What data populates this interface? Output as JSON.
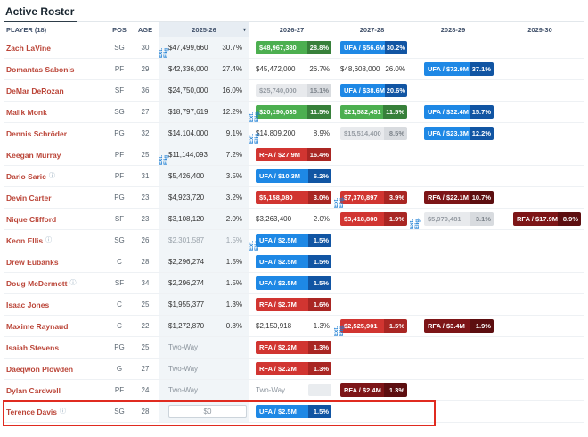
{
  "title": "Active Roster",
  "labels": {
    "ext_elig": "Ext. Elig.",
    "two_way": "Two-Way"
  },
  "columns": [
    {
      "key": "player",
      "label": "PLAYER (18)",
      "sortable": true
    },
    {
      "key": "pos",
      "label": "POS",
      "sortable": true
    },
    {
      "key": "age",
      "label": "AGE",
      "sortable": true
    },
    {
      "key": "2025-26",
      "label": "2025-26",
      "sortable": true,
      "sorted": true
    },
    {
      "key": "2026-27",
      "label": "2026-27",
      "sortable": true
    },
    {
      "key": "2027-28",
      "label": "2027-28",
      "sortable": true
    },
    {
      "key": "2028-29",
      "label": "2028-29",
      "sortable": true
    },
    {
      "key": "2029-30",
      "label": "2029-30",
      "sortable": true
    }
  ],
  "colors": {
    "player_link": "#bb4538",
    "highlight_border": "#e02b20",
    "ext_elig_text": "#1d7fd4",
    "sorted_column_bg": "#e7edf3",
    "badges": {
      "green": {
        "bg": "#4caf50",
        "dark": "#37803a"
      },
      "blue": {
        "bg": "#1e88e5",
        "dark": "#1155a3"
      },
      "red": {
        "bg": "#d13531",
        "dark": "#a92623"
      },
      "darkred": {
        "bg": "#7d1517",
        "dark": "#5c0e10"
      },
      "grey": {
        "bg": "#e8eaed",
        "dark": "#d8dbdf",
        "text": "#969ca3",
        "text_dark": "#7c838a"
      }
    }
  },
  "rows": [
    {
      "player": "Zach LaVine",
      "pos": "SG",
      "age": 30,
      "y2025": {
        "type": "salary",
        "value": "$47,499,660",
        "pct": "30.7%",
        "ext": true
      },
      "y2026": {
        "type": "badge",
        "style": "green",
        "label": "$48,967,380",
        "pct": "28.8%"
      },
      "y2027": {
        "type": "badge",
        "style": "blue",
        "label": "UFA / $56.6M",
        "pct": "30.2%"
      },
      "y2028": null,
      "y2029": null
    },
    {
      "player": "Domantas Sabonis",
      "pos": "PF",
      "age": 29,
      "y2025": {
        "type": "salary",
        "value": "$42,336,000",
        "pct": "27.4%"
      },
      "y2026": {
        "type": "plain",
        "label": "$45,472,000",
        "pct": "26.7%"
      },
      "y2027": {
        "type": "plain",
        "label": "$48,608,000",
        "pct": "26.0%"
      },
      "y2028": {
        "type": "badge",
        "style": "blue",
        "label": "UFA / $72.9M",
        "pct": "37.1%"
      },
      "y2029": null
    },
    {
      "player": "DeMar DeRozan",
      "pos": "SF",
      "age": 36,
      "y2025": {
        "type": "salary",
        "value": "$24,750,000",
        "pct": "16.0%"
      },
      "y2026": {
        "type": "badge",
        "style": "grey",
        "label": "$25,740,000",
        "pct": "15.1%"
      },
      "y2027": {
        "type": "badge",
        "style": "blue",
        "label": "UFA / $38.6M",
        "pct": "20.6%"
      },
      "y2028": null,
      "y2029": null
    },
    {
      "player": "Malik Monk",
      "pos": "SG",
      "age": 27,
      "y2025": {
        "type": "salary",
        "value": "$18,797,619",
        "pct": "12.2%"
      },
      "y2026": {
        "type": "badge",
        "style": "green",
        "label": "$20,190,035",
        "pct": "11.5%",
        "ext": true
      },
      "y2027": {
        "type": "badge",
        "style": "green",
        "label": "$21,582,451",
        "pct": "11.5%"
      },
      "y2028": {
        "type": "badge",
        "style": "blue",
        "label": "UFA / $32.4M",
        "pct": "15.7%"
      },
      "y2029": null
    },
    {
      "player": "Dennis Schröder",
      "pos": "PG",
      "age": 32,
      "y2025": {
        "type": "salary",
        "value": "$14,104,000",
        "pct": "9.1%"
      },
      "y2026": {
        "type": "plain",
        "label": "$14,809,200",
        "pct": "8.9%",
        "ext": true
      },
      "y2027": {
        "type": "badge",
        "style": "grey",
        "label": "$15,514,400",
        "pct": "8.5%"
      },
      "y2028": {
        "type": "badge",
        "style": "blue",
        "label": "UFA / $23.3M",
        "pct": "12.2%"
      },
      "y2029": null
    },
    {
      "player": "Keegan Murray",
      "pos": "PF",
      "age": 25,
      "y2025": {
        "type": "salary",
        "value": "$11,144,093",
        "pct": "7.2%",
        "ext": true
      },
      "y2026": {
        "type": "badge",
        "style": "red",
        "label": "RFA / $27.9M",
        "pct": "16.4%"
      },
      "y2027": null,
      "y2028": null,
      "y2029": null
    },
    {
      "player": "Dario Saric",
      "pos": "PF",
      "age": 31,
      "icon": true,
      "y2025": {
        "type": "salary",
        "value": "$5,426,400",
        "pct": "3.5%"
      },
      "y2026": {
        "type": "badge",
        "style": "blue",
        "label": "UFA / $10.3M",
        "pct": "6.2%"
      },
      "y2027": null,
      "y2028": null,
      "y2029": null
    },
    {
      "player": "Devin Carter",
      "pos": "PG",
      "age": 23,
      "y2025": {
        "type": "salary",
        "value": "$4,923,720",
        "pct": "3.2%"
      },
      "y2026": {
        "type": "badge",
        "style": "red",
        "label": "$5,158,080",
        "pct": "3.0%"
      },
      "y2027": {
        "type": "badge",
        "style": "red",
        "label": "$7,370,897",
        "pct": "3.9%",
        "ext": true
      },
      "y2028": {
        "type": "badge",
        "style": "darkred",
        "label": "RFA / $22.1M",
        "pct": "10.7%"
      },
      "y2029": null
    },
    {
      "player": "Nique Clifford",
      "pos": "SF",
      "age": 23,
      "y2025": {
        "type": "salary",
        "value": "$3,108,120",
        "pct": "2.0%"
      },
      "y2026": {
        "type": "plain",
        "label": "$3,263,400",
        "pct": "2.0%"
      },
      "y2027": {
        "type": "badge",
        "style": "red",
        "label": "$3,418,800",
        "pct": "1.9%"
      },
      "y2028": {
        "type": "badge",
        "style": "grey",
        "label": "$5,979,481",
        "pct": "3.1%",
        "ext": true
      },
      "y2029": {
        "type": "badge",
        "style": "darkred",
        "label": "RFA / $17.9M",
        "pct": "8.9%"
      }
    },
    {
      "player": "Keon Ellis",
      "pos": "SG",
      "age": 26,
      "icon": true,
      "y2025": {
        "type": "salary",
        "value": "$2,301,587",
        "pct": "1.5%",
        "muted": true
      },
      "y2026": {
        "type": "badge",
        "style": "blue",
        "label": "UFA / $2.5M",
        "pct": "1.5%",
        "ext": true
      },
      "y2027": null,
      "y2028": null,
      "y2029": null
    },
    {
      "player": "Drew Eubanks",
      "pos": "C",
      "age": 28,
      "y2025": {
        "type": "salary",
        "value": "$2,296,274",
        "pct": "1.5%"
      },
      "y2026": {
        "type": "badge",
        "style": "blue",
        "label": "UFA / $2.5M",
        "pct": "1.5%"
      },
      "y2027": null,
      "y2028": null,
      "y2029": null
    },
    {
      "player": "Doug McDermott",
      "pos": "SF",
      "age": 34,
      "icon": true,
      "y2025": {
        "type": "salary",
        "value": "$2,296,274",
        "pct": "1.5%"
      },
      "y2026": {
        "type": "badge",
        "style": "blue",
        "label": "UFA / $2.5M",
        "pct": "1.5%"
      },
      "y2027": null,
      "y2028": null,
      "y2029": null
    },
    {
      "player": "Isaac Jones",
      "pos": "C",
      "age": 25,
      "y2025": {
        "type": "salary",
        "value": "$1,955,377",
        "pct": "1.3%"
      },
      "y2026": {
        "type": "badge",
        "style": "red",
        "label": "RFA / $2.7M",
        "pct": "1.6%"
      },
      "y2027": null,
      "y2028": null,
      "y2029": null
    },
    {
      "player": "Maxime Raynaud",
      "pos": "C",
      "age": 22,
      "y2025": {
        "type": "salary",
        "value": "$1,272,870",
        "pct": "0.8%"
      },
      "y2026": {
        "type": "plain",
        "label": "$2,150,918",
        "pct": "1.3%"
      },
      "y2027": {
        "type": "badge",
        "style": "red",
        "label": "$2,525,901",
        "pct": "1.5%",
        "ext": true
      },
      "y2028": {
        "type": "badge",
        "style": "darkred",
        "label": "RFA / $3.4M",
        "pct": "1.9%"
      },
      "y2029": null
    },
    {
      "player": "Isaiah Stevens",
      "pos": "PG",
      "age": 25,
      "y2025": {
        "type": "twoway"
      },
      "y2026": {
        "type": "badge",
        "style": "red",
        "label": "RFA / $2.2M",
        "pct": "1.3%"
      },
      "y2027": null,
      "y2028": null,
      "y2029": null
    },
    {
      "player": "Daeqwon Plowden",
      "pos": "G",
      "age": 27,
      "y2025": {
        "type": "twoway"
      },
      "y2026": {
        "type": "badge",
        "style": "red",
        "label": "RFA / $2.2M",
        "pct": "1.3%"
      },
      "y2027": null,
      "y2028": null,
      "y2029": null
    },
    {
      "player": "Dylan Cardwell",
      "pos": "PF",
      "age": 24,
      "y2025": {
        "type": "twoway"
      },
      "y2026": {
        "type": "twoway",
        "chip": true
      },
      "y2027": {
        "type": "badge",
        "style": "darkred",
        "label": "RFA / $2.4M",
        "pct": "1.3%"
      },
      "y2028": null,
      "y2029": null
    },
    {
      "player": "Terence Davis",
      "pos": "SG",
      "age": 28,
      "icon": true,
      "highlighted": true,
      "y2025": {
        "type": "input",
        "value": "$0"
      },
      "y2026": {
        "type": "badge",
        "style": "blue",
        "label": "UFA / $2.5M",
        "pct": "1.5%"
      },
      "y2027": null,
      "y2028": null,
      "y2029": null
    }
  ]
}
